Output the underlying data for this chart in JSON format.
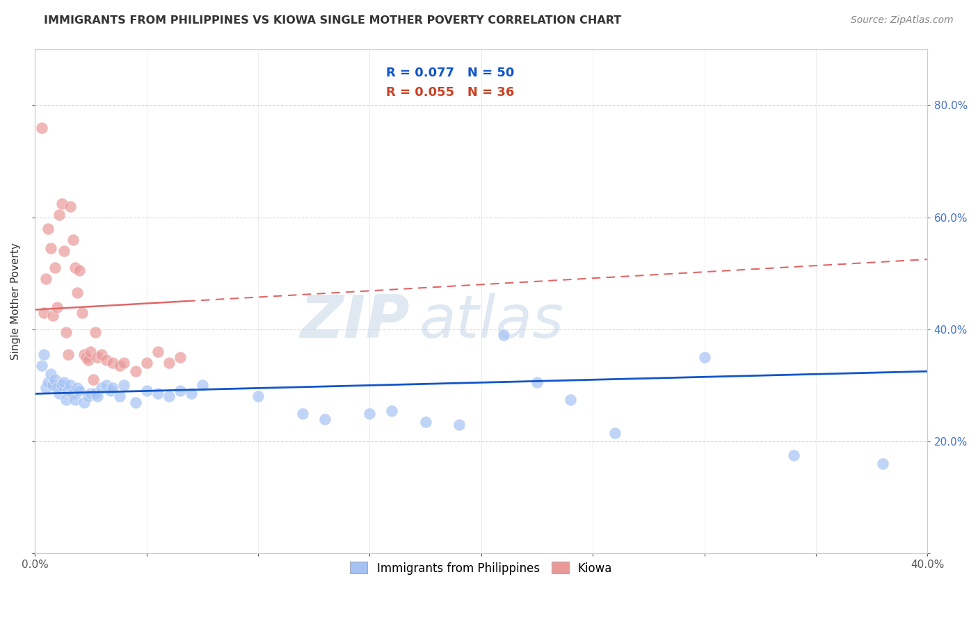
{
  "title": "IMMIGRANTS FROM PHILIPPINES VS KIOWA SINGLE MOTHER POVERTY CORRELATION CHART",
  "source": "Source: ZipAtlas.com",
  "ylabel": "Single Mother Poverty",
  "legend_blue_r": "R = 0.077",
  "legend_blue_n": "N = 50",
  "legend_pink_r": "R = 0.055",
  "legend_pink_n": "N = 36",
  "blue_color": "#a4c2f4",
  "pink_color": "#ea9999",
  "blue_line_color": "#1155cc",
  "pink_line_solid_color": "#e06666",
  "pink_line_dash_color": "#e06666",
  "background_color": "#ffffff",
  "watermark_zip": "ZIP",
  "watermark_atlas": "atlas",
  "blue_scatter_x": [
    0.003,
    0.004,
    0.005,
    0.006,
    0.007,
    0.008,
    0.009,
    0.01,
    0.011,
    0.012,
    0.013,
    0.014,
    0.015,
    0.016,
    0.017,
    0.018,
    0.019,
    0.02,
    0.022,
    0.024,
    0.025,
    0.027,
    0.028,
    0.03,
    0.032,
    0.034,
    0.035,
    0.038,
    0.04,
    0.045,
    0.05,
    0.055,
    0.06,
    0.065,
    0.07,
    0.075,
    0.1,
    0.12,
    0.13,
    0.15,
    0.16,
    0.175,
    0.19,
    0.21,
    0.225,
    0.24,
    0.26,
    0.3,
    0.34,
    0.38
  ],
  "blue_scatter_y": [
    0.335,
    0.355,
    0.295,
    0.305,
    0.32,
    0.3,
    0.31,
    0.295,
    0.285,
    0.3,
    0.305,
    0.275,
    0.29,
    0.3,
    0.285,
    0.275,
    0.295,
    0.29,
    0.27,
    0.28,
    0.285,
    0.285,
    0.28,
    0.295,
    0.3,
    0.29,
    0.295,
    0.28,
    0.3,
    0.27,
    0.29,
    0.285,
    0.28,
    0.29,
    0.285,
    0.3,
    0.28,
    0.25,
    0.24,
    0.25,
    0.255,
    0.235,
    0.23,
    0.39,
    0.305,
    0.275,
    0.215,
    0.35,
    0.175,
    0.16
  ],
  "pink_scatter_x": [
    0.003,
    0.004,
    0.005,
    0.006,
    0.007,
    0.008,
    0.009,
    0.01,
    0.011,
    0.012,
    0.013,
    0.014,
    0.015,
    0.016,
    0.017,
    0.018,
    0.019,
    0.02,
    0.021,
    0.022,
    0.023,
    0.024,
    0.025,
    0.026,
    0.027,
    0.028,
    0.03,
    0.032,
    0.035,
    0.038,
    0.04,
    0.045,
    0.05,
    0.055,
    0.06,
    0.065
  ],
  "pink_scatter_y": [
    0.76,
    0.43,
    0.49,
    0.58,
    0.545,
    0.425,
    0.51,
    0.44,
    0.605,
    0.625,
    0.54,
    0.395,
    0.355,
    0.62,
    0.56,
    0.51,
    0.465,
    0.505,
    0.43,
    0.355,
    0.35,
    0.345,
    0.36,
    0.31,
    0.395,
    0.35,
    0.355,
    0.345,
    0.34,
    0.335,
    0.34,
    0.325,
    0.34,
    0.36,
    0.34,
    0.35
  ],
  "xlim": [
    0.0,
    0.4
  ],
  "ylim": [
    0.0,
    0.9
  ],
  "xticks": [
    0.0,
    0.05,
    0.1,
    0.15,
    0.2,
    0.25,
    0.3,
    0.35,
    0.4
  ],
  "yticks": [
    0.0,
    0.2,
    0.4,
    0.6,
    0.8
  ],
  "ytick_labels_right": [
    "",
    "20.0%",
    "40.0%",
    "60.0%",
    "80.0%"
  ]
}
